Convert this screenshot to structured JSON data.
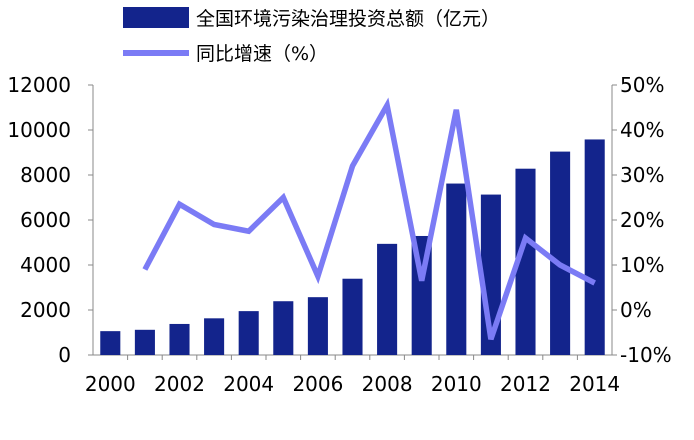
{
  "chart_data": {
    "type": "bar",
    "categories": [
      "2000",
      "2001",
      "2002",
      "2003",
      "2004",
      "2005",
      "2006",
      "2007",
      "2008",
      "2009",
      "2010",
      "2011",
      "2012",
      "2013",
      "2014"
    ],
    "x_tick_labels": [
      "2000",
      "2002",
      "2004",
      "2006",
      "2008",
      "2010",
      "2012",
      "2014"
    ],
    "series": [
      {
        "name": "全国环境污染治理投资总额（亿元）",
        "type": "bar",
        "axis": "left",
        "color": "#13248c",
        "values": [
          1060,
          1120,
          1380,
          1630,
          1950,
          2390,
          2570,
          3390,
          4940,
          5290,
          7620,
          7130,
          8280,
          9040,
          9580
        ]
      },
      {
        "name": "同比增速（%）",
        "type": "line",
        "axis": "right",
        "color": "#7b7bf5",
        "values": [
          null,
          9,
          23.5,
          19,
          17.5,
          25,
          7.5,
          32,
          45.5,
          6.5,
          44.5,
          -6.5,
          16,
          10,
          6
        ]
      }
    ],
    "y_left": {
      "ylim": [
        0,
        12000
      ],
      "ticks": [
        "0",
        "2000",
        "4000",
        "6000",
        "8000",
        "10000",
        "12000"
      ]
    },
    "y_right": {
      "ylim": [
        -10,
        50
      ],
      "ticks": [
        "-10%",
        "0%",
        "10%",
        "20%",
        "30%",
        "40%",
        "50%"
      ]
    },
    "legend": "top-left",
    "grid": false
  }
}
